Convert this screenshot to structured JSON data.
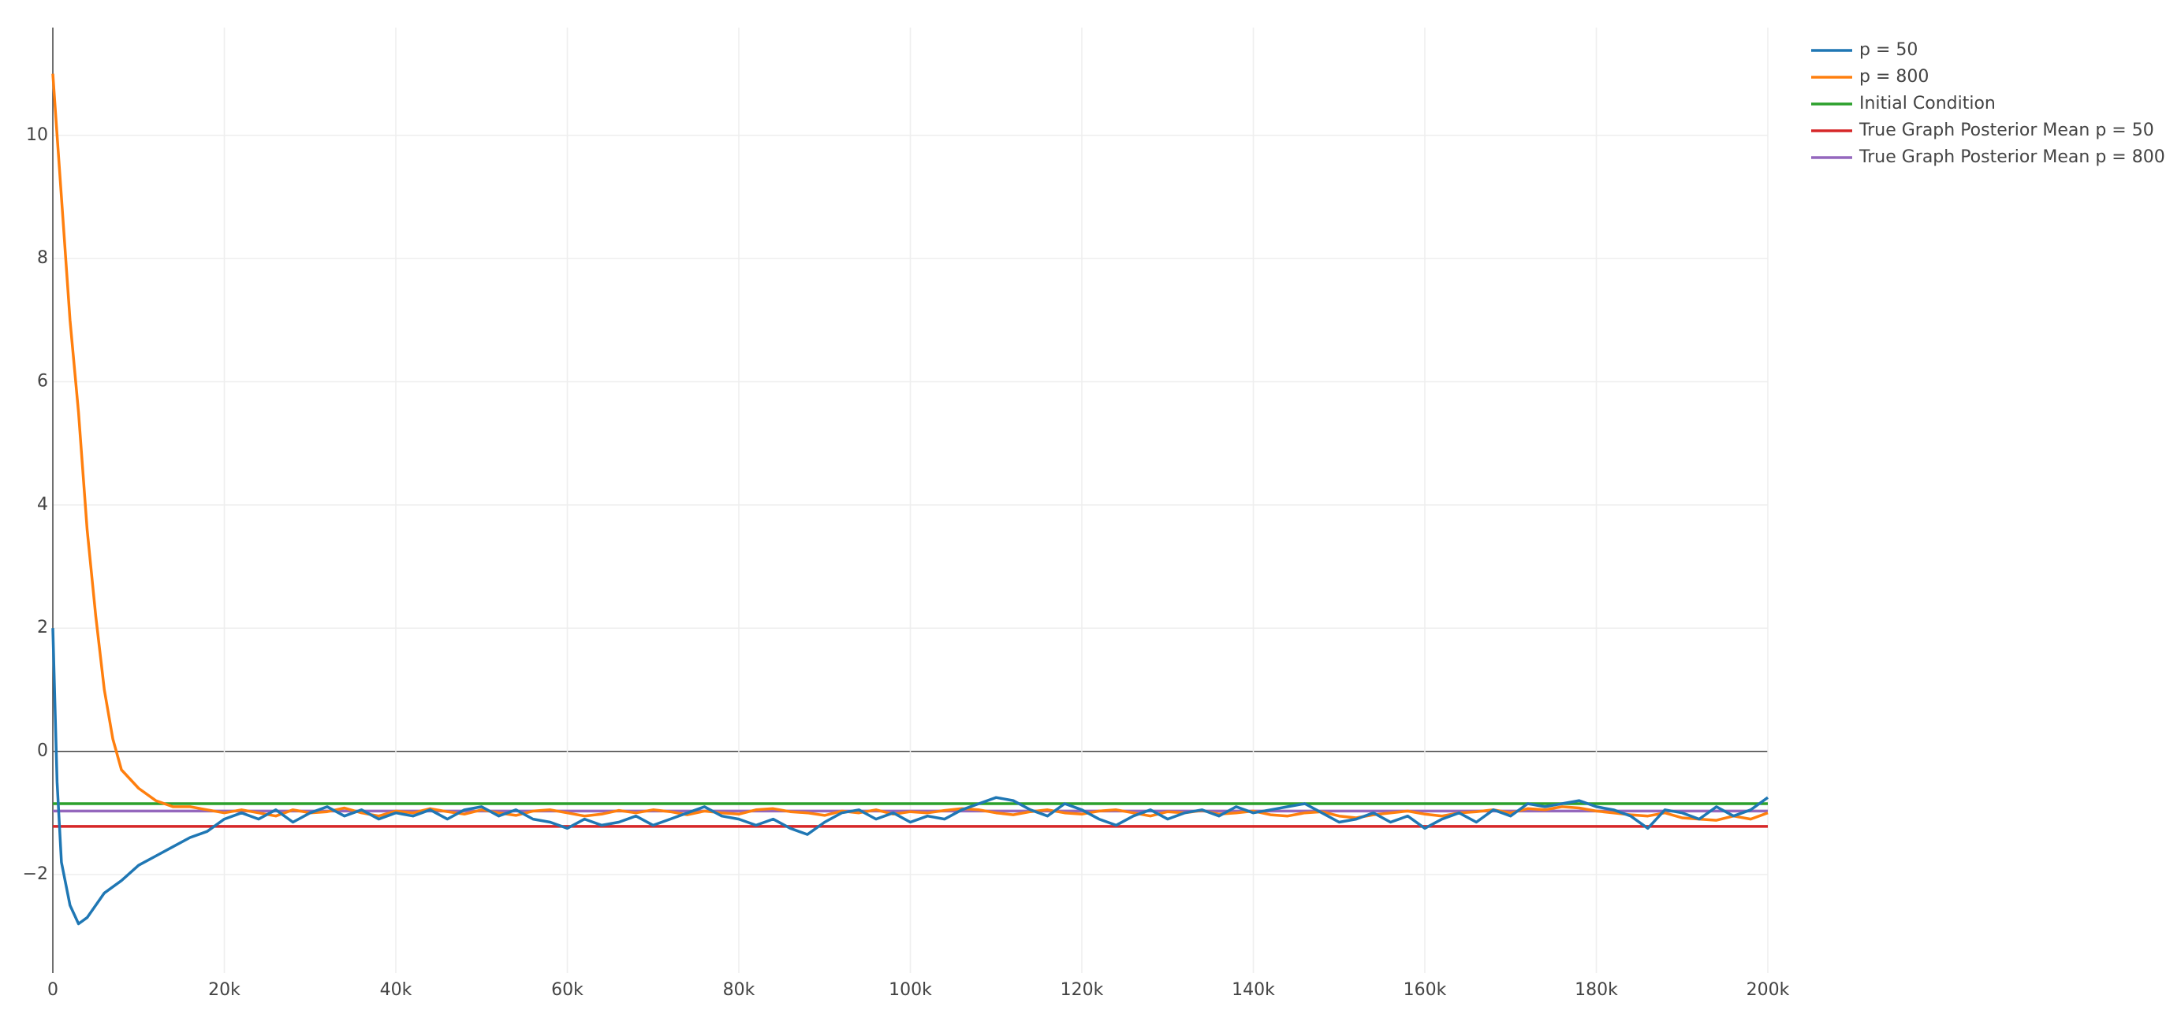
{
  "chart_data": {
    "type": "line",
    "x": [
      0,
      500,
      1000,
      2000,
      3000,
      4000,
      5000,
      6000,
      7000,
      8000,
      10000,
      12000,
      14000,
      16000,
      18000,
      20000,
      22000,
      24000,
      26000,
      28000,
      30000,
      32000,
      34000,
      36000,
      38000,
      40000,
      42000,
      44000,
      46000,
      48000,
      50000,
      52000,
      54000,
      56000,
      58000,
      60000,
      62000,
      64000,
      66000,
      68000,
      70000,
      72000,
      74000,
      76000,
      78000,
      80000,
      82000,
      84000,
      86000,
      88000,
      90000,
      92000,
      94000,
      96000,
      98000,
      100000,
      102000,
      104000,
      106000,
      108000,
      110000,
      112000,
      114000,
      116000,
      118000,
      120000,
      122000,
      124000,
      126000,
      128000,
      130000,
      132000,
      134000,
      136000,
      138000,
      140000,
      142000,
      144000,
      146000,
      148000,
      150000,
      152000,
      154000,
      156000,
      158000,
      160000,
      162000,
      164000,
      166000,
      168000,
      170000,
      172000,
      174000,
      176000,
      178000,
      180000,
      182000,
      184000,
      186000,
      188000,
      190000,
      192000,
      194000,
      196000,
      198000,
      200000
    ],
    "series": [
      {
        "name": "p = 50",
        "color": "#1f77b4",
        "values": [
          2,
          -0.5,
          -1.8,
          -2.5,
          -2.8,
          -2.7,
          -2.5,
          -2.3,
          -2.2,
          -2.1,
          -1.85,
          -1.7,
          -1.55,
          -1.4,
          -1.3,
          -1.1,
          -1.0,
          -1.1,
          -0.95,
          -1.15,
          -1.0,
          -0.9,
          -1.05,
          -0.95,
          -1.1,
          -1.0,
          -1.05,
          -0.95,
          -1.1,
          -0.95,
          -0.9,
          -1.05,
          -0.95,
          -1.1,
          -1.15,
          -1.25,
          -1.1,
          -1.2,
          -1.15,
          -1.05,
          -1.2,
          -1.1,
          -1.0,
          -0.9,
          -1.05,
          -1.1,
          -1.2,
          -1.1,
          -1.25,
          -1.35,
          -1.15,
          -1.0,
          -0.95,
          -1.1,
          -1.0,
          -1.15,
          -1.05,
          -1.1,
          -0.95,
          -0.85,
          -0.75,
          -0.8,
          -0.95,
          -1.05,
          -0.85,
          -0.95,
          -1.1,
          -1.2,
          -1.05,
          -0.95,
          -1.1,
          -1.0,
          -0.95,
          -1.05,
          -0.9,
          -1.0,
          -0.95,
          -0.9,
          -0.85,
          -1.0,
          -1.15,
          -1.1,
          -1.0,
          -1.15,
          -1.05,
          -1.25,
          -1.1,
          -1.0,
          -1.15,
          -0.95,
          -1.05,
          -0.85,
          -0.9,
          -0.85,
          -0.8,
          -0.9,
          -0.95,
          -1.05,
          -1.25,
          -0.95,
          -1.0,
          -1.1,
          -0.9,
          -1.05,
          -0.95,
          -0.75
        ]
      },
      {
        "name": "p = 800",
        "color": "#ff7f0e",
        "values": [
          11,
          10,
          9,
          7,
          5.5,
          3.6,
          2.2,
          1.0,
          0.2,
          -0.3,
          -0.6,
          -0.8,
          -0.9,
          -0.9,
          -0.95,
          -1.0,
          -0.95,
          -1.0,
          -1.05,
          -0.95,
          -1.0,
          -0.98,
          -0.92,
          -1.0,
          -1.05,
          -0.97,
          -1.0,
          -0.93,
          -0.98,
          -1.02,
          -0.95,
          -1.0,
          -1.04,
          -0.97,
          -0.95,
          -1.0,
          -1.05,
          -1.02,
          -0.96,
          -1.0,
          -0.95,
          -0.98,
          -1.03,
          -0.97,
          -1.0,
          -1.02,
          -0.95,
          -0.93,
          -0.98,
          -1.0,
          -1.04,
          -0.97,
          -1.0,
          -0.95,
          -1.02,
          -0.98,
          -1.0,
          -0.96,
          -0.93,
          -0.95,
          -1.0,
          -1.03,
          -0.98,
          -0.95,
          -1.0,
          -1.02,
          -0.97,
          -0.95,
          -1.0,
          -1.05,
          -0.98,
          -1.0,
          -0.96,
          -1.02,
          -1.0,
          -0.97,
          -1.03,
          -1.05,
          -1.0,
          -0.98,
          -1.05,
          -1.08,
          -1.03,
          -1.0,
          -0.97,
          -1.02,
          -1.05,
          -1.0,
          -0.98,
          -0.95,
          -1.0,
          -0.93,
          -0.95,
          -0.9,
          -0.92,
          -0.97,
          -1.0,
          -1.03,
          -1.05,
          -1.0,
          -1.08,
          -1.1,
          -1.12,
          -1.05,
          -1.1,
          -1.0
        ]
      },
      {
        "name": "Initial Condition",
        "color": "#2ca02c",
        "x": [
          0,
          200000
        ],
        "values": [
          -0.85,
          -0.85
        ]
      },
      {
        "name": "True Graph Posterior Mean p = 50",
        "color": "#d62728",
        "x": [
          0,
          200000
        ],
        "values": [
          -1.22,
          -1.22
        ]
      },
      {
        "name": "True Graph Posterior Mean p = 800",
        "color": "#9467bd",
        "x": [
          0,
          200000
        ],
        "values": [
          -0.97,
          -0.97
        ]
      }
    ],
    "xlim": [
      0,
      200000
    ],
    "xticks": [
      0,
      {
        "value": 20000,
        "label": "20k"
      },
      {
        "value": 40000,
        "label": "40k"
      },
      {
        "value": 60000,
        "label": "60k"
      },
      {
        "value": 80000,
        "label": "80k"
      },
      {
        "value": 100000,
        "label": "100k"
      },
      {
        "value": 120000,
        "label": "120k"
      },
      {
        "value": 140000,
        "label": "140k"
      },
      {
        "value": 160000,
        "label": "160k"
      },
      {
        "value": 180000,
        "label": "180k"
      },
      {
        "value": 200000,
        "label": "200k"
      }
    ],
    "ylim": [
      -3.6,
      11.75
    ],
    "yticks": [
      {
        "value": -2,
        "label": "−2"
      },
      0,
      2,
      4,
      6,
      8,
      10
    ],
    "grid": true,
    "legend": "right"
  }
}
